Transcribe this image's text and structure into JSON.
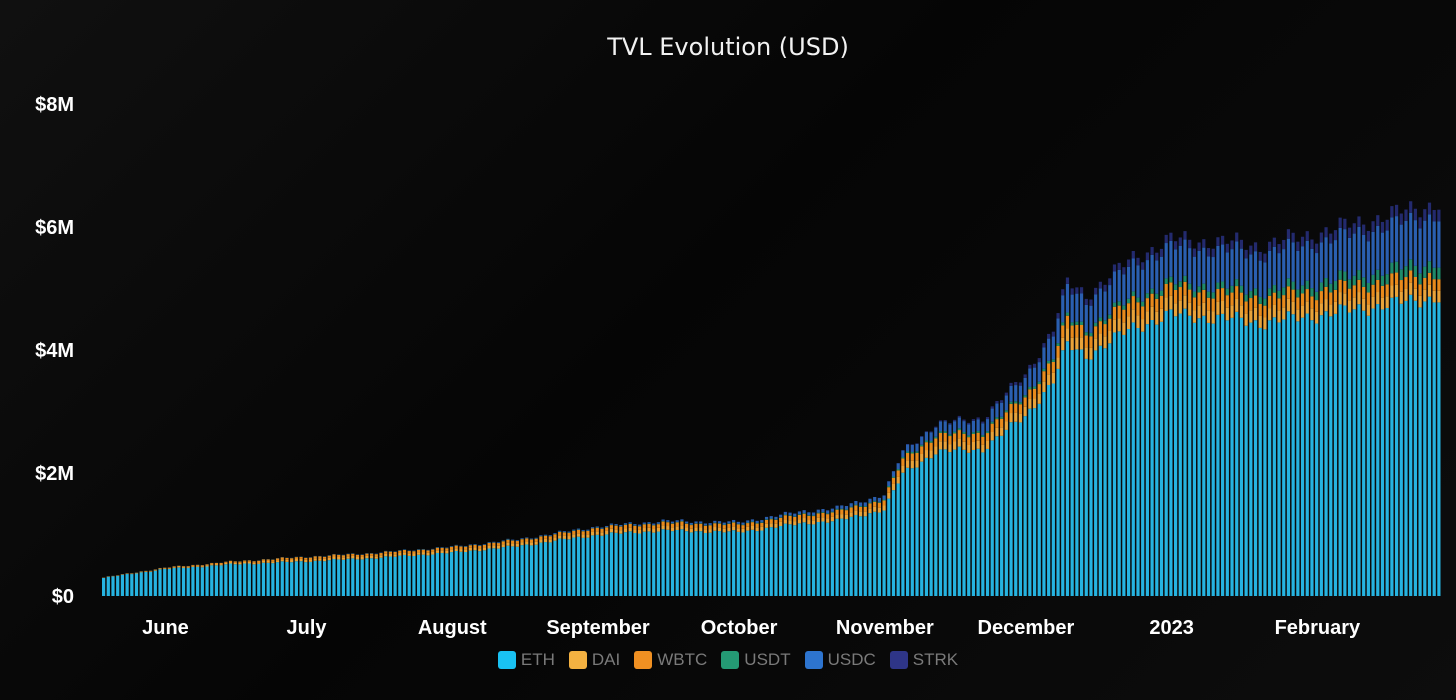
{
  "chart_data": {
    "type": "bar",
    "stacked": true,
    "title": "TVL Evolution (USD)",
    "xlabel": "",
    "ylabel": "",
    "ylim": [
      0,
      8000000
    ],
    "yticks": [
      {
        "value": 0,
        "label": "$0"
      },
      {
        "value": 2000000,
        "label": "$2M"
      },
      {
        "value": 4000000,
        "label": "$4M"
      },
      {
        "value": 6000000,
        "label": "$6M"
      },
      {
        "value": 8000000,
        "label": "$8M"
      }
    ],
    "x_start": "2022-05-19",
    "x_end": "2023-02-27",
    "xticks": [
      {
        "date": "2022-06-01",
        "label": "June"
      },
      {
        "date": "2022-07-01",
        "label": "July"
      },
      {
        "date": "2022-08-01",
        "label": "August"
      },
      {
        "date": "2022-09-01",
        "label": "September"
      },
      {
        "date": "2022-10-01",
        "label": "October"
      },
      {
        "date": "2022-11-01",
        "label": "November"
      },
      {
        "date": "2022-12-01",
        "label": "December"
      },
      {
        "date": "2023-01-01",
        "label": "2023"
      },
      {
        "date": "2023-02-01",
        "label": "February"
      }
    ],
    "grid": false,
    "legend_position": "bottom",
    "series": [
      {
        "name": "ETH",
        "color": "#26b3e0",
        "legend_color": "#19c1f2"
      },
      {
        "name": "DAI",
        "color": "#e8a33a",
        "legend_color": "#f3b141"
      },
      {
        "name": "WBTC",
        "color": "#e88a1c",
        "legend_color": "#f09022"
      },
      {
        "name": "USDT",
        "color": "#1f8a6a",
        "legend_color": "#249a74"
      },
      {
        "name": "USDC",
        "color": "#2a5fb0",
        "legend_color": "#2d74cf"
      },
      {
        "name": "STRK",
        "color": "#232a6e",
        "legend_color": "#2e3587"
      }
    ],
    "total_keypoints": [
      [
        "2022-05-19",
        300000
      ],
      [
        "2022-06-01",
        460000
      ],
      [
        "2022-06-15",
        560000
      ],
      [
        "2022-07-01",
        640000
      ],
      [
        "2022-07-15",
        700000
      ],
      [
        "2022-08-01",
        800000
      ],
      [
        "2022-08-15",
        920000
      ],
      [
        "2022-09-01",
        1130000
      ],
      [
        "2022-09-15",
        1220000
      ],
      [
        "2022-10-01",
        1200000
      ],
      [
        "2022-10-15",
        1380000
      ],
      [
        "2022-10-22",
        1430000
      ],
      [
        "2022-11-01",
        1650000
      ],
      [
        "2022-11-05",
        2350000
      ],
      [
        "2022-11-12",
        2800000
      ],
      [
        "2022-11-22",
        2900000
      ],
      [
        "2022-12-01",
        3600000
      ],
      [
        "2022-12-07",
        4350000
      ],
      [
        "2022-12-10",
        5100000
      ],
      [
        "2022-12-14",
        4900000
      ],
      [
        "2022-12-24",
        5500000
      ],
      [
        "2023-01-01",
        5800000
      ],
      [
        "2023-01-15",
        5750000
      ],
      [
        "2023-01-20",
        5700000
      ],
      [
        "2023-02-01",
        5900000
      ],
      [
        "2023-02-27",
        6400000
      ]
    ],
    "composition_keypoints": [
      {
        "date": "2022-05-19",
        "shares": [
          0.98,
          0.01,
          0.01,
          0.0,
          0.0,
          0.0
        ]
      },
      {
        "date": "2022-07-01",
        "shares": [
          0.88,
          0.06,
          0.05,
          0.005,
          0.005,
          0.0
        ]
      },
      {
        "date": "2022-09-01",
        "shares": [
          0.88,
          0.05,
          0.05,
          0.005,
          0.015,
          0.0
        ]
      },
      {
        "date": "2022-11-01",
        "shares": [
          0.85,
          0.05,
          0.05,
          0.01,
          0.04,
          0.0
        ]
      },
      {
        "date": "2022-12-10",
        "shares": [
          0.8,
          0.04,
          0.04,
          0.01,
          0.09,
          0.02
        ]
      },
      {
        "date": "2023-02-27",
        "shares": [
          0.76,
          0.03,
          0.03,
          0.03,
          0.12,
          0.03
        ]
      }
    ]
  }
}
